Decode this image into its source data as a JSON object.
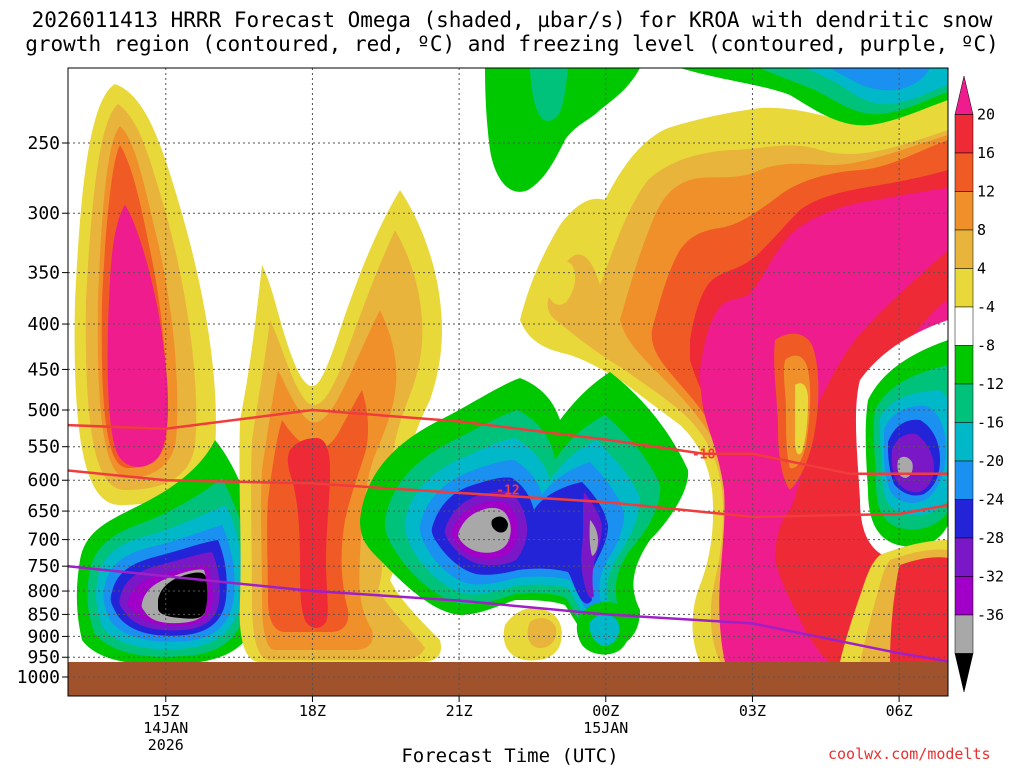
{
  "title_line1": "2026011413 HRRR Forecast Omega (shaded, µbar/s) for KROA with dendritic snow",
  "title_line2": "growth region (contoured, red, ºC) and freezing level (contoured, purple, ºC)",
  "xlabel": "Forecast Time (UTC)",
  "credit": "coolwx.com/modelts",
  "chart_data": {
    "type": "heatmap",
    "title": "2026011413 HRRR Forecast Omega (shaded, µbar/s) for KROA with dendritic snow growth region (contoured, red, ºC) and freezing level (contoured, purple, ºC)",
    "xlabel": "Forecast Time (UTC)",
    "ylabel": "",
    "y_axis_scale": "log pressure (reversed)",
    "y_ticks": [
      250,
      300,
      350,
      400,
      450,
      500,
      550,
      600,
      650,
      700,
      750,
      800,
      850,
      900,
      950,
      1000
    ],
    "x_range": [
      "2026-01-14 13Z",
      "2026-01-15 07Z"
    ],
    "x_ticks": [
      {
        "time": "2026-01-14 15Z",
        "label": "15Z",
        "sub1": "14JAN",
        "sub2": "2026"
      },
      {
        "time": "2026-01-14 18Z",
        "label": "18Z",
        "sub1": "",
        "sub2": ""
      },
      {
        "time": "2026-01-14 21Z",
        "label": "21Z",
        "sub1": "",
        "sub2": ""
      },
      {
        "time": "2026-01-15 00Z",
        "label": "00Z",
        "sub1": "15JAN",
        "sub2": ""
      },
      {
        "time": "2026-01-15 03Z",
        "label": "03Z",
        "sub1": "",
        "sub2": ""
      },
      {
        "time": "2026-01-15 06Z",
        "label": "06Z",
        "sub1": "",
        "sub2": ""
      }
    ],
    "grid": true,
    "colorbar": {
      "labels": [
        "20",
        "16",
        "12",
        "8",
        "4",
        "-4",
        "-8",
        "-12",
        "-16",
        "-20",
        "-24",
        "-28",
        "-32",
        "-36"
      ],
      "colors": [
        "#ee1c8c",
        "#ee2a37",
        "#f05a25",
        "#f0902a",
        "#e8b43c",
        "#e8d83a",
        "#ffffff",
        "#00c800",
        "#00c27a",
        "#00b8c8",
        "#1a90f0",
        "#2323d8",
        "#7a18c8",
        "#a000c8",
        "#a8a8a8",
        "#000000"
      ]
    },
    "shaded_regions": [
      {
        "id": "pos-12-0600z-",
        "center_time": "2026-01-14 14Z",
        "center_pressure": 400,
        "peak_omega": 20
      },
      {
        "id": "neg-1500z",
        "center_time": "2026-01-14 15Z",
        "center_pressure": 770,
        "min_omega": -36
      },
      {
        "id": "pos-1800z",
        "center_time": "2026-01-14 18Z",
        "center_pressure": 650,
        "peak_omega": 16
      },
      {
        "id": "neg-2200z",
        "center_time": "2026-01-14 22Z",
        "center_pressure": 640,
        "min_omega": -36
      },
      {
        "id": "neg-0000z",
        "center_time": "2026-01-15 00Z",
        "center_pressure": 640,
        "min_omega": -24
      },
      {
        "id": "neg-top-2200z",
        "center_time": "2026-01-14 23Z",
        "center_pressure": 220,
        "min_omega": -12
      },
      {
        "id": "neg-top-0500z",
        "center_time": "2026-01-15 05Z",
        "center_pressure": 220,
        "min_omega": -20
      },
      {
        "id": "pos-0300z",
        "center_time": "2026-01-15 03Z",
        "center_pressure": 500,
        "peak_omega": 20
      },
      {
        "id": "neg-0630z",
        "center_time": "2026-01-15 06Z",
        "center_pressure": 580,
        "min_omega": -32
      }
    ],
    "series": [
      {
        "name": "-12",
        "color": "#f03c3c",
        "x": [
          "2026-01-14 13Z",
          "2026-01-14 15Z",
          "2026-01-14 18Z",
          "2026-01-14 21Z",
          "2026-01-15 00Z",
          "2026-01-15 03Z",
          "2026-01-15 06Z",
          "2026-01-15 07Z"
        ],
        "y": [
          585,
          600,
          605,
          620,
          635,
          660,
          655,
          640
        ]
      },
      {
        "name": "-18",
        "color": "#f03c3c",
        "x": [
          "2026-01-14 13Z",
          "2026-01-14 15Z",
          "2026-01-14 18Z",
          "2026-01-14 21Z",
          "2026-01-15 00Z",
          "2026-01-15 02Z",
          "2026-01-15 03Z",
          "2026-01-15 05Z",
          "2026-01-15 07Z"
        ],
        "y": [
          520,
          525,
          500,
          515,
          540,
          560,
          560,
          590,
          590
        ]
      },
      {
        "name": "0",
        "color": "#a020c8",
        "x": [
          "2026-01-14 13Z",
          "2026-01-14 15Z",
          "2026-01-14 18Z",
          "2026-01-14 21Z",
          "2026-01-15 00Z",
          "2026-01-15 03Z",
          "2026-01-15 06Z",
          "2026-01-15 07Z"
        ],
        "y": [
          750,
          770,
          800,
          820,
          850,
          870,
          940,
          960
        ]
      }
    ],
    "contour_labels": [
      {
        "text": "-12",
        "time": "2026-01-14 22Z",
        "pressure": 615
      },
      {
        "text": "-18",
        "time": "2026-01-15 02Z",
        "pressure": 560
      }
    ]
  }
}
